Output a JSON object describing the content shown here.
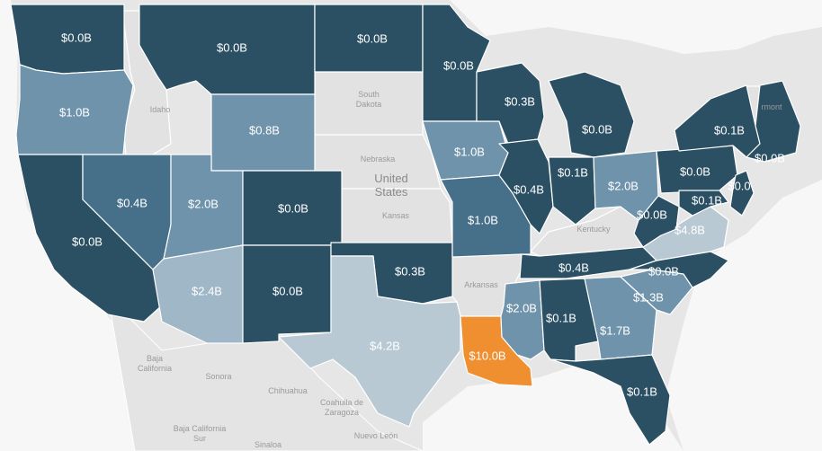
{
  "colors": {
    "dark": "#2b4f63",
    "mid": "#46708a",
    "light": "#6e93ab",
    "pale": "#9fb7c6",
    "paler": "#b8c9d4",
    "highlight": "#ef8f2f",
    "nodata": "#e0e0e0",
    "background": "#e6e6e6"
  },
  "background_labels": {
    "country": "United States",
    "nodata_states": [
      "Idaho",
      "South Dakota",
      "Nebraska",
      "Kansas",
      "Kentucky",
      "Arkansas",
      "Vermont"
    ],
    "mexico": [
      "Baja California",
      "Sonora",
      "Chihuahua",
      "Coahuila de Zaragoza",
      "Baja California Sur",
      "Sinaloa",
      "Nuevo León"
    ]
  },
  "states": [
    {
      "id": "WA",
      "value": "$0.0B",
      "shade": "dark"
    },
    {
      "id": "OR",
      "value": "$1.0B",
      "shade": "light"
    },
    {
      "id": "CA",
      "value": "$0.0B",
      "shade": "dark"
    },
    {
      "id": "NV",
      "value": "$0.4B",
      "shade": "mid"
    },
    {
      "id": "MT",
      "value": "$0.0B",
      "shade": "dark"
    },
    {
      "id": "WY",
      "value": "$0.8B",
      "shade": "light"
    },
    {
      "id": "UT",
      "value": "$2.0B",
      "shade": "light"
    },
    {
      "id": "CO",
      "value": "$0.0B",
      "shade": "dark"
    },
    {
      "id": "AZ",
      "value": "$2.4B",
      "shade": "pale"
    },
    {
      "id": "NM",
      "value": "$0.0B",
      "shade": "dark"
    },
    {
      "id": "ND",
      "value": "$0.0B",
      "shade": "dark"
    },
    {
      "id": "OK",
      "value": "$0.3B",
      "shade": "dark"
    },
    {
      "id": "TX",
      "value": "$4.2B",
      "shade": "paler"
    },
    {
      "id": "MN",
      "value": "$0.0B",
      "shade": "dark"
    },
    {
      "id": "IA",
      "value": "$1.0B",
      "shade": "light"
    },
    {
      "id": "MO",
      "value": "$1.0B",
      "shade": "mid"
    },
    {
      "id": "LA",
      "value": "$10.0B",
      "shade": "highlight"
    },
    {
      "id": "WI",
      "value": "$0.3B",
      "shade": "dark"
    },
    {
      "id": "IL",
      "value": "$0.4B",
      "shade": "dark"
    },
    {
      "id": "MI",
      "value": "$0.0B",
      "shade": "dark"
    },
    {
      "id": "IN",
      "value": "$0.1B",
      "shade": "dark"
    },
    {
      "id": "OH",
      "value": "$2.0B",
      "shade": "light"
    },
    {
      "id": "TN",
      "value": "$0.4B",
      "shade": "dark"
    },
    {
      "id": "MS",
      "value": "$2.0B",
      "shade": "light"
    },
    {
      "id": "AL",
      "value": "$0.1B",
      "shade": "dark"
    },
    {
      "id": "GA",
      "value": "$1.7B",
      "shade": "light"
    },
    {
      "id": "FL",
      "value": "$0.1B",
      "shade": "dark"
    },
    {
      "id": "SC",
      "value": "$1.3B",
      "shade": "light"
    },
    {
      "id": "NC",
      "value": "$0.0B",
      "shade": "dark"
    },
    {
      "id": "VA",
      "value": "$4.8B",
      "shade": "paler"
    },
    {
      "id": "WV",
      "value": "$0.0B",
      "shade": "dark"
    },
    {
      "id": "PA",
      "value": "$0.0B",
      "shade": "dark"
    },
    {
      "id": "NY",
      "value": "$0.1B",
      "shade": "dark"
    },
    {
      "id": "NE_states",
      "value": "$0.0B",
      "shade": "dark"
    },
    {
      "id": "MD",
      "value": "$0.1B",
      "shade": "dark"
    },
    {
      "id": "NJ",
      "value": "$0.0",
      "shade": "dark"
    }
  ]
}
